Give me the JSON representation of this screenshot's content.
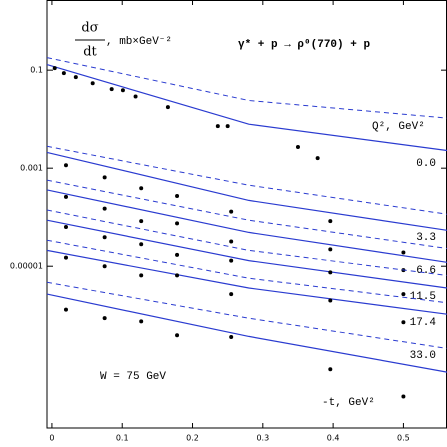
{
  "chart_data": {
    "type": "line",
    "log_y": true,
    "ylabel_num": "dσ",
    "ylabel_den": "dt",
    "ylabel_unit": ", mb×GeV⁻²",
    "reaction": "γ* + p → ρ⁰(770) + p",
    "legend_title": "Q², GeV²",
    "energy": "W = 75 GeV",
    "xlabel": "-t, GeV²",
    "xlim": [
      -0.007,
      0.562
    ],
    "ylim": [
      5e-09,
      2.7
    ],
    "xticks": [
      0,
      0.1,
      0.2,
      0.3,
      0.4,
      0.5
    ],
    "yticks": [
      0.1,
      0.001,
      1e-05
    ],
    "point_color": "#000000",
    "curve_color": "#2a3bd0",
    "curve_x": [
      -0.007,
      0.28,
      0.562
    ],
    "series": [
      {
        "name": "0.0",
        "x": [
          0.004,
          0.017,
          0.034,
          0.058,
          0.085,
          0.101,
          0.119,
          0.165,
          0.236,
          0.25,
          0.35,
          0.378
        ],
        "values": [
          0.11,
          0.087,
          0.072,
          0.054,
          0.041,
          0.039,
          0.029,
          0.0176,
          0.0072,
          0.0072,
          0.0027,
          0.0016
        ],
        "solid": [
          0.13,
          0.0079,
          0.0023
        ],
        "dashed": [
          0.18,
          0.024,
          0.0105
        ]
      },
      {
        "name": "3.3",
        "x": [
          0.02,
          0.075,
          0.127,
          0.178,
          0.255,
          0.396,
          0.5
        ],
        "values": [
          0.00115,
          0.00065,
          0.00039,
          0.00027,
          0.00013,
          8.3e-05,
          1.9e-05
        ],
        "solid": [
          0.0021,
          0.00022,
          5.4e-05
        ],
        "dashed": [
          0.0028,
          0.00045,
          0.000115
        ]
      },
      {
        "name": "6.6",
        "x": [
          0.02,
          0.075,
          0.127,
          0.178,
          0.255,
          0.396,
          0.5
        ],
        "values": [
          0.00026,
          0.00015,
          8.3e-05,
          7.5e-05,
          3.2e-05,
          2.2e-05,
          8.3e-06
        ],
        "solid": [
          0.00036,
          4.9e-05,
          1.2e-05
        ],
        "dashed": [
          0.00057,
          8.7e-05,
          2.3e-05
        ]
      },
      {
        "name": "11.5",
        "x": [
          0.02,
          0.075,
          0.127,
          0.178,
          0.255,
          0.396,
          0.5
        ],
        "values": [
          6.3e-05,
          3.9e-05,
          2.8e-05,
          1.7e-05,
          1.3e-05,
          7.5e-06,
          2.7e-06
        ],
        "solid": [
          8.7e-05,
          1.3e-05,
          3.6e-06
        ],
        "dashed": [
          0.00014,
          2.1e-05,
          6.5e-06
        ]
      },
      {
        "name": "17.4",
        "x": [
          0.02,
          0.075,
          0.127,
          0.178,
          0.255,
          0.396,
          0.5
        ],
        "values": [
          1.5e-05,
          1e-05,
          6.5e-06,
          6.5e-06,
          2.7e-06,
          2e-06,
          7.2e-07
        ],
        "solid": [
          2.1e-05,
          3.6e-06,
          1.05e-06
        ],
        "dashed": [
          3.4e-05,
          5.7e-06,
          1.8e-06
        ]
      },
      {
        "name": "33.0",
        "x": [
          0.02,
          0.075,
          0.127,
          0.178,
          0.255,
          0.396,
          0.5
        ],
        "values": [
          1.3e-06,
          8.7e-07,
          7.5e-07,
          3.9e-07,
          3.6e-07,
          7.9e-08,
          2.2e-08
        ],
        "solid": [
          2.7e-06,
          3.7e-07,
          6.9e-08
        ],
        "dashed": [
          4.7e-06,
          8.7e-07,
          2.1e-07
        ]
      }
    ]
  }
}
